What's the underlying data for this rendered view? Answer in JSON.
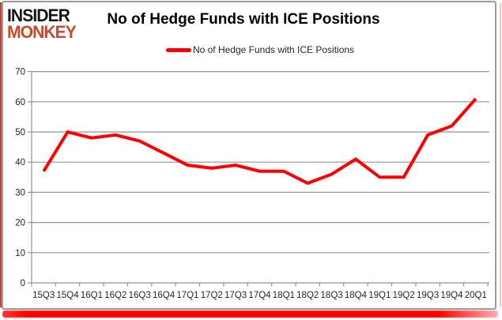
{
  "branding": {
    "logo_line1": "INSIDER",
    "logo_line2": "MONKEY",
    "logo_color_primary": "#161616",
    "logo_color_secondary": "#c94a2e"
  },
  "header": {
    "title": "No of Hedge Funds with ICE Positions"
  },
  "legend": {
    "label": "No of Hedge Funds with ICE Positions",
    "swatch_color": "#ff0000"
  },
  "chart_data": {
    "type": "line",
    "title": "No of Hedge Funds with ICE Positions",
    "categories": [
      "15Q3",
      "15Q4",
      "16Q1",
      "16Q2",
      "16Q3",
      "16Q4",
      "17Q1",
      "17Q2",
      "17Q3",
      "17Q4",
      "18Q1",
      "18Q2",
      "18Q3",
      "18Q4",
      "19Q1",
      "19Q2",
      "19Q3",
      "19Q4",
      "20Q1"
    ],
    "series": [
      {
        "name": "No of Hedge Funds with ICE Positions",
        "color": "#ff0000",
        "values": [
          37,
          50,
          48,
          49,
          47,
          43,
          39,
          38,
          39,
          37,
          37,
          33,
          36,
          41,
          35,
          35,
          49,
          52,
          61
        ]
      }
    ],
    "ylim": [
      0,
      70
    ],
    "yticks": [
      0,
      10,
      20,
      30,
      40,
      50,
      60,
      70
    ],
    "grid": true,
    "legend_position": "top-center",
    "line_width": 4
  },
  "colors": {
    "grid": "#949494",
    "axis": "#949494",
    "tick_text": "#262626",
    "accent_red": "#ff0000"
  }
}
